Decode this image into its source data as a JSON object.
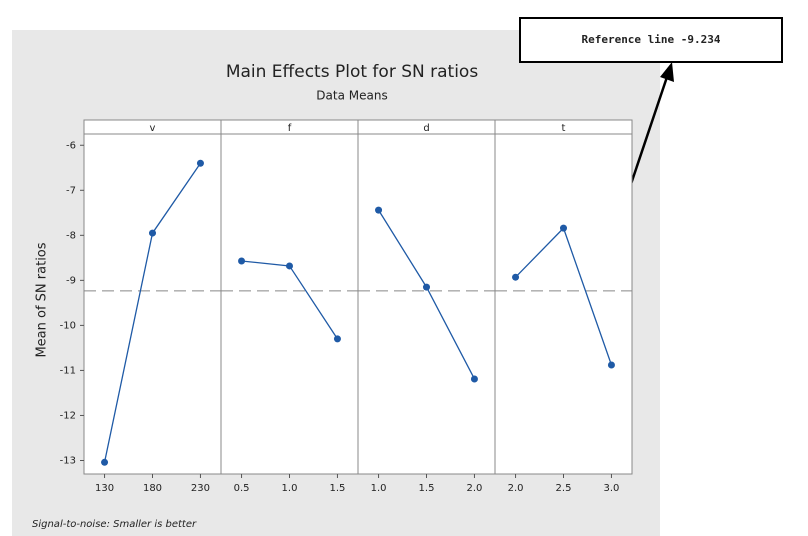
{
  "chart_data": {
    "type": "line",
    "title": "Main Effects Plot for SN ratios",
    "subtitle": "Data Means",
    "ylabel": "Mean of SN ratios",
    "footnote": "Signal-to-noise: Smaller is better",
    "color": "#1f5aa6",
    "ylim": [
      -13.3,
      -5.75
    ],
    "yticks": [
      -6,
      -7,
      -8,
      -9,
      -10,
      -11,
      -12,
      -13
    ],
    "reference": {
      "value": -9.234,
      "label": "Reference line -9.234"
    },
    "panels": [
      {
        "name": "v",
        "categories": [
          "130",
          "180",
          "230"
        ],
        "values": [
          -13.04,
          -7.95,
          -6.4
        ]
      },
      {
        "name": "f",
        "categories": [
          "0.5",
          "1.0",
          "1.5"
        ],
        "values": [
          -8.57,
          -8.68,
          -10.3
        ]
      },
      {
        "name": "d",
        "categories": [
          "1.0",
          "1.5",
          "2.0"
        ],
        "values": [
          -7.44,
          -9.15,
          -11.19
        ]
      },
      {
        "name": "t",
        "categories": [
          "2.0",
          "2.5",
          "3.0"
        ],
        "values": [
          -8.93,
          -7.84,
          -10.88
        ]
      }
    ]
  }
}
